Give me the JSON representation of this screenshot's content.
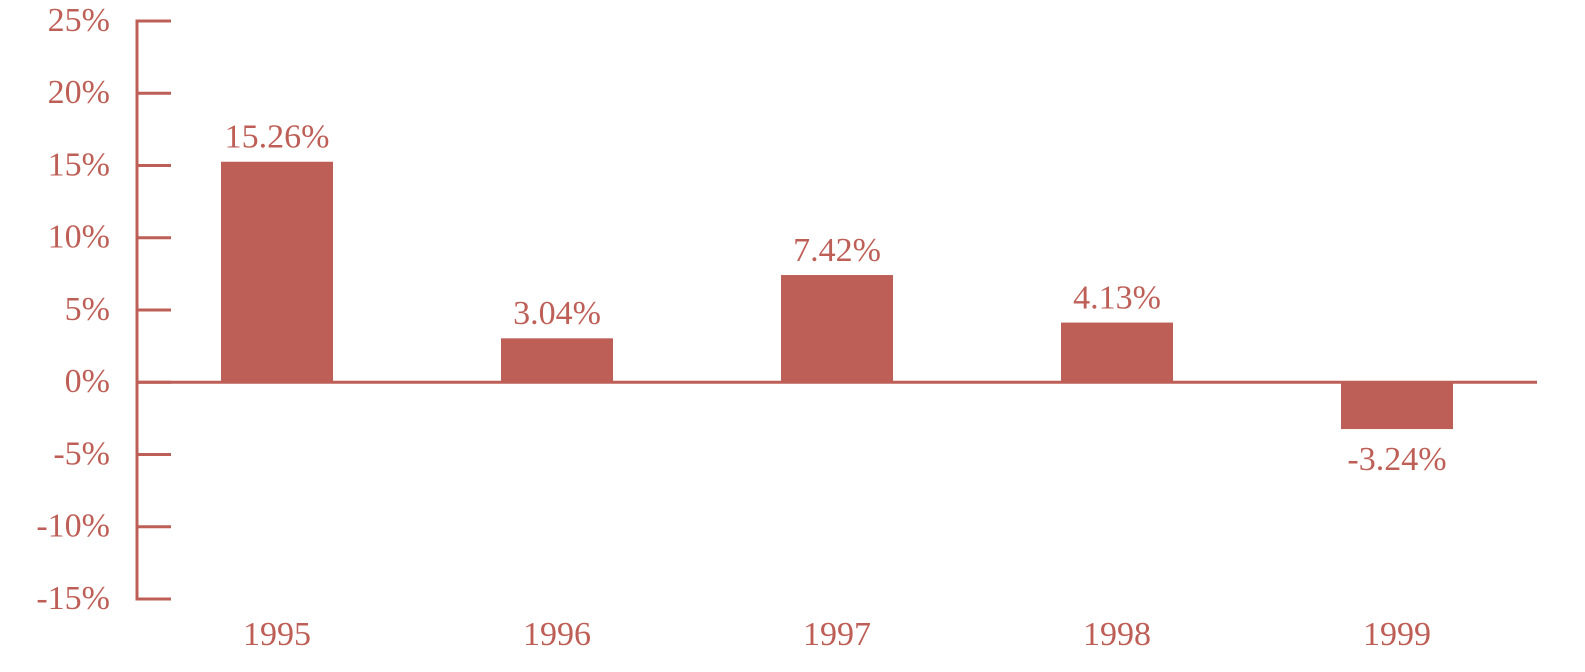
{
  "chart_data": {
    "type": "bar",
    "categories": [
      "1995",
      "1996",
      "1997",
      "1998",
      "1999"
    ],
    "values": [
      15.26,
      3.04,
      7.42,
      4.13,
      -3.24
    ],
    "value_labels": [
      "15.26%",
      "3.04%",
      "7.42%",
      "4.13%",
      "-3.24%"
    ],
    "color": "#be5f57",
    "ylim": [
      -15,
      25
    ],
    "yticks": [
      {
        "value": -15,
        "label": "-15%"
      },
      {
        "value": -10,
        "label": "-10%"
      },
      {
        "value": -5,
        "label": "-5%"
      },
      {
        "value": 0,
        "label": "0%"
      },
      {
        "value": 5,
        "label": "5%"
      },
      {
        "value": 10,
        "label": "10%"
      },
      {
        "value": 15,
        "label": "15%"
      },
      {
        "value": 20,
        "label": "20%"
      },
      {
        "value": 25,
        "label": "25%"
      }
    ],
    "grid": false
  }
}
